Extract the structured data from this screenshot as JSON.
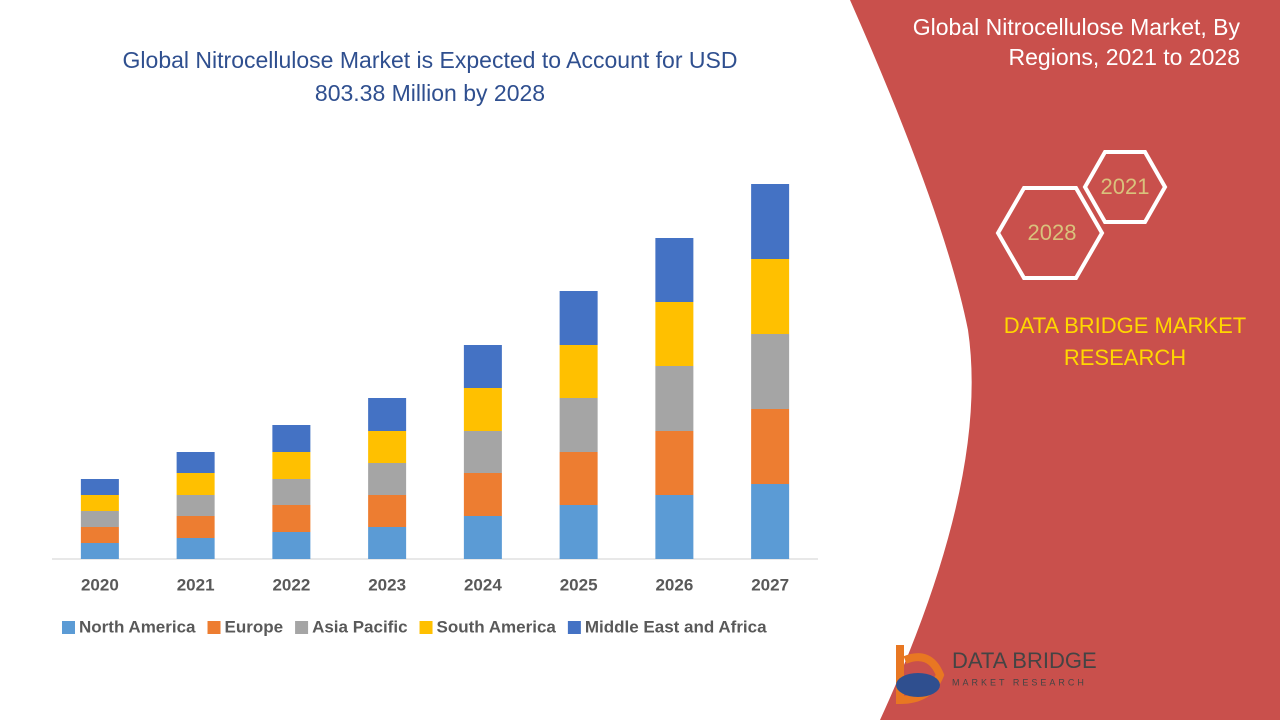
{
  "chart_data": {
    "type": "stacked-bar",
    "title": "Global Nitrocellulose Market is Expected to Account for USD 803.38 Million by 2028",
    "categories": [
      "2020",
      "2021",
      "2022",
      "2023",
      "2024",
      "2025",
      "2026",
      "2027"
    ],
    "series": [
      {
        "name": "North America",
        "color": "#5b9bd5",
        "values": [
          16,
          21,
          27,
          32,
          43,
          54,
          64,
          75
        ]
      },
      {
        "name": "Europe",
        "color": "#ed7d31",
        "values": [
          16,
          22,
          27,
          32,
          43,
          53,
          64,
          75
        ]
      },
      {
        "name": "Asia Pacific",
        "color": "#a5a5a5",
        "values": [
          16,
          21,
          26,
          32,
          42,
          54,
          65,
          75
        ]
      },
      {
        "name": "South America",
        "color": "#ffc000",
        "values": [
          16,
          22,
          27,
          32,
          43,
          53,
          64,
          75
        ]
      },
      {
        "name": "Middle East and Africa",
        "color": "#4472c4",
        "values": [
          16,
          21,
          27,
          33,
          43,
          54,
          64,
          75
        ]
      }
    ],
    "ylim": [
      0,
      400
    ]
  },
  "side_title": "Global Nitrocellulose Market, By Regions, 2021 to 2028",
  "hex_labels": [
    "2021",
    "2028"
  ],
  "brand": "DATA BRIDGE MARKET RESEARCH",
  "logo": [
    "DATA BRIDGE",
    "MARKET RESEARCH"
  ]
}
